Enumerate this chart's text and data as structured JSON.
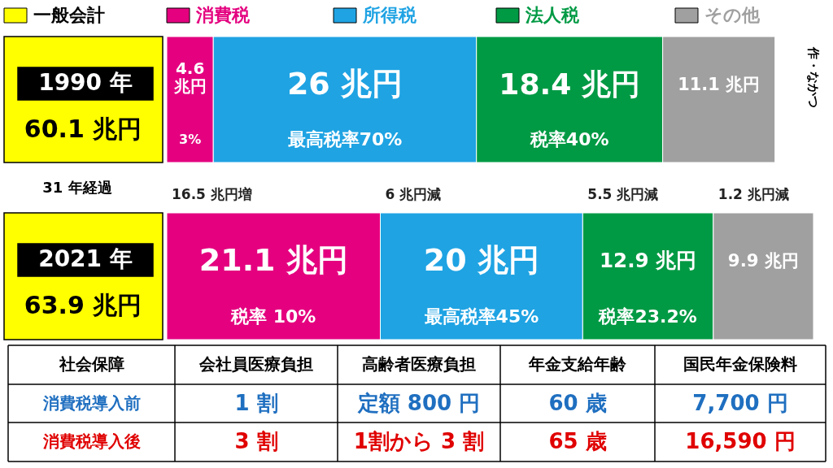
{
  "chart_data": {
    "type": "bar",
    "orientation": "horizontal",
    "stacked": true,
    "legend": "top",
    "legend_title": "一般会計",
    "categories": [
      "1990 年",
      "2021 年"
    ],
    "totals": [
      "60.1 兆円",
      "63.9 兆円"
    ],
    "series": [
      {
        "name": "消費税",
        "color": "#e4007f",
        "values": [
          4.6,
          21.1
        ],
        "value_labels": [
          "4.6 兆円",
          "21.1 兆円"
        ]
      },
      {
        "name": "所得税",
        "color": "#1fa3e3",
        "values": [
          26,
          20
        ],
        "value_labels": [
          "26 兆円",
          "20 兆円"
        ]
      },
      {
        "name": "法人税",
        "color": "#009a44",
        "values": [
          18.4,
          12.9
        ],
        "value_labels": [
          "18.4 兆円",
          "12.9 兆円"
        ]
      },
      {
        "name": "その他",
        "color": "#a0a0a0",
        "values": [
          11.1,
          9.9
        ],
        "value_labels": [
          "11.1 兆円",
          "9.9 兆円"
        ]
      }
    ],
    "annotations": [
      "3%",
      "最高税率70%",
      "税率40%",
      "税率 10%",
      "最高税率45%",
      "税率23.2%",
      "16.5 兆円増",
      "6 兆円減",
      "5.5 兆円減",
      "1.2 兆円減",
      "31 年経過",
      "作・なかつ",
      "社会保障",
      "会社員医療負担",
      "高齢者医療負担",
      "年金支給年齢",
      "国民年金保険料",
      "消費税導入前",
      "1 割",
      "定額 800 円",
      "60 歳",
      "7,700 円",
      "消費税導入後",
      "3 割",
      "1割から 3 割",
      "65 歳",
      "16,590 円"
    ]
  }
}
